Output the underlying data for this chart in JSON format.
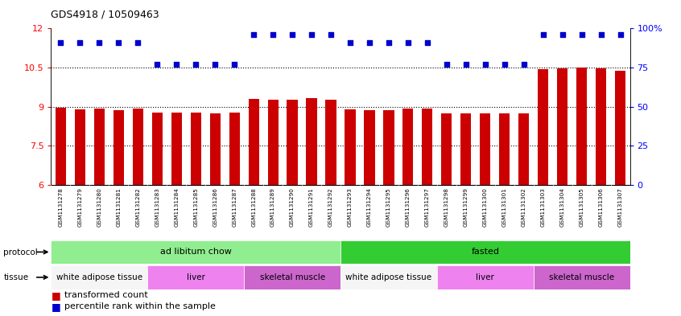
{
  "title": "GDS4918 / 10509463",
  "samples": [
    "GSM1131278",
    "GSM1131279",
    "GSM1131280",
    "GSM1131281",
    "GSM1131282",
    "GSM1131283",
    "GSM1131284",
    "GSM1131285",
    "GSM1131286",
    "GSM1131287",
    "GSM1131288",
    "GSM1131289",
    "GSM1131290",
    "GSM1131291",
    "GSM1131292",
    "GSM1131293",
    "GSM1131294",
    "GSM1131295",
    "GSM1131296",
    "GSM1131297",
    "GSM1131298",
    "GSM1131299",
    "GSM1131300",
    "GSM1131301",
    "GSM1131302",
    "GSM1131303",
    "GSM1131304",
    "GSM1131305",
    "GSM1131306",
    "GSM1131307"
  ],
  "bar_values": [
    8.95,
    8.9,
    8.93,
    8.88,
    8.93,
    8.77,
    8.76,
    8.78,
    8.73,
    8.78,
    9.3,
    9.28,
    9.27,
    9.32,
    9.28,
    8.9,
    8.87,
    8.88,
    8.93,
    8.93,
    8.73,
    8.74,
    8.74,
    8.75,
    8.75,
    10.45,
    10.48,
    10.5,
    10.48,
    10.38
  ],
  "percentile_values": [
    91,
    91,
    91,
    91,
    91,
    77,
    77,
    77,
    77,
    77,
    96,
    96,
    96,
    96,
    96,
    91,
    91,
    91,
    91,
    91,
    77,
    77,
    77,
    77,
    77,
    96,
    96,
    96,
    96,
    96
  ],
  "bar_color": "#cc0000",
  "dot_color": "#0000cc",
  "ylim_left": [
    6,
    12
  ],
  "ylim_right": [
    0,
    100
  ],
  "yticks_left": [
    6,
    7.5,
    9,
    10.5,
    12
  ],
  "yticks_right": [
    0,
    25,
    50,
    75,
    100
  ],
  "dotted_lines": [
    7.5,
    9,
    10.5
  ],
  "protocol_groups": [
    {
      "label": "ad libitum chow",
      "start": 0,
      "end": 15,
      "color": "#90ee90"
    },
    {
      "label": "fasted",
      "start": 15,
      "end": 30,
      "color": "#33cc33"
    }
  ],
  "tissue_groups": [
    {
      "label": "white adipose tissue",
      "start": 0,
      "end": 5,
      "color": "#f5f5f5"
    },
    {
      "label": "liver",
      "start": 5,
      "end": 10,
      "color": "#ee82ee"
    },
    {
      "label": "skeletal muscle",
      "start": 10,
      "end": 15,
      "color": "#cc66cc"
    },
    {
      "label": "white adipose tissue",
      "start": 15,
      "end": 20,
      "color": "#f5f5f5"
    },
    {
      "label": "liver",
      "start": 20,
      "end": 25,
      "color": "#ee82ee"
    },
    {
      "label": "skeletal muscle",
      "start": 25,
      "end": 30,
      "color": "#cc66cc"
    }
  ],
  "legend_items": [
    {
      "label": "transformed count",
      "color": "#cc0000"
    },
    {
      "label": "percentile rank within the sample",
      "color": "#0000cc"
    }
  ],
  "bar_width": 0.55,
  "background_color": "#ffffff",
  "xticklabel_bg": "#d8d8d8"
}
